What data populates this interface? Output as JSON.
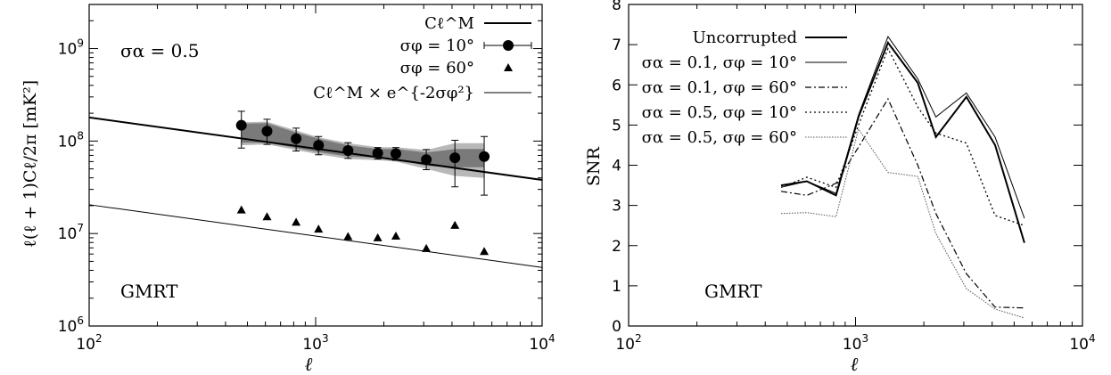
{
  "chart_data": [
    {
      "type": "scatter",
      "xlabel": "ℓ",
      "ylabel": "ℓ(ℓ + 1)Cℓ/2π [mK²]",
      "xscale": "log",
      "yscale": "log",
      "xlim": [
        100,
        10000
      ],
      "ylim": [
        1000000,
        3000000000
      ],
      "x_ticks": [
        {
          "base": "10",
          "exp": "2"
        },
        {
          "base": "10",
          "exp": "3"
        },
        {
          "base": "10",
          "exp": "4"
        }
      ],
      "y_ticks": [
        {
          "base": "10",
          "exp": "6"
        },
        {
          "base": "10",
          "exp": "7"
        },
        {
          "base": "10",
          "exp": "8"
        },
        {
          "base": "10",
          "exp": "9"
        }
      ],
      "annotations": [
        "σα = 0.5",
        "GMRT"
      ],
      "legend_position": "top-right",
      "series": [
        {
          "name": "Cℓ^M",
          "style": "thick-line",
          "x": [
            100,
            10000
          ],
          "y": [
            180000000,
            38000000
          ]
        },
        {
          "name": "σφ = 10°",
          "style": "points-errorbars",
          "x": [
            470,
            610,
            820,
            1030,
            1390,
            1880,
            2260,
            3080,
            4120,
            5550
          ],
          "y": [
            148000000,
            128000000,
            106000000,
            90000000,
            79000000,
            74000000,
            73000000,
            63000000,
            66000000,
            68000000
          ],
          "err_lo": [
            84000000,
            92000000,
            78000000,
            71000000,
            65000000,
            64000000,
            62000000,
            49000000,
            32000000,
            26000000
          ],
          "err_hi": [
            210000000,
            172000000,
            138000000,
            112000000,
            96000000,
            85000000,
            85000000,
            81000000,
            102000000,
            112000000
          ],
          "band_dark_lo": [
            96000000,
            96000000,
            84000000,
            76000000,
            68000000,
            66000000,
            64000000,
            54000000,
            52000000,
            52000000
          ],
          "band_dark_hi": [
            154000000,
            156000000,
            124000000,
            106000000,
            90000000,
            82000000,
            82000000,
            75000000,
            82000000,
            82000000
          ],
          "band_light_lo": [
            90000000,
            92000000,
            80000000,
            72000000,
            64000000,
            62000000,
            60000000,
            50000000,
            42000000,
            40000000
          ],
          "band_light_hi": [
            160000000,
            162000000,
            130000000,
            110000000,
            95000000,
            86000000,
            86000000,
            80000000,
            95000000,
            95000000
          ]
        },
        {
          "name": "σφ = 60°",
          "style": "triangles",
          "x": [
            470,
            610,
            820,
            1030,
            1390,
            1880,
            2260,
            3080,
            4120,
            5550
          ],
          "y": [
            18000000,
            15200000,
            13300000,
            11200000,
            9300000,
            9000000,
            9400000,
            6900000,
            12300000,
            6400000
          ]
        },
        {
          "name": "Cℓ^M × e^{-2σφ²}",
          "style": "thin-line",
          "x": [
            100,
            10000
          ],
          "y": [
            20500000,
            4300000
          ]
        }
      ]
    },
    {
      "type": "line",
      "xlabel": "ℓ",
      "ylabel": "SNR",
      "xscale": "log",
      "xlim": [
        100,
        10000
      ],
      "ylim": [
        0,
        8
      ],
      "x_ticks": [
        {
          "base": "10",
          "exp": "2"
        },
        {
          "base": "10",
          "exp": "3"
        },
        {
          "base": "10",
          "exp": "4"
        }
      ],
      "y_ticks": [
        "0",
        "1",
        "2",
        "3",
        "4",
        "5",
        "6",
        "7",
        "8"
      ],
      "annotations": [
        "GMRT"
      ],
      "legend_position": "top-right",
      "x": [
        470,
        610,
        820,
        1030,
        1390,
        1880,
        2260,
        3080,
        4120,
        5550
      ],
      "series": [
        {
          "name": "Uncorrupted",
          "style": "solid-thick",
          "values": [
            3.5,
            3.6,
            3.25,
            5.2,
            7.05,
            6.05,
            4.7,
            5.7,
            4.5,
            2.07
          ]
        },
        {
          "name": "σα = 0.1, σφ = 10°",
          "style": "solid-thin",
          "values": [
            3.45,
            3.6,
            3.3,
            5.25,
            7.2,
            6.15,
            5.2,
            5.8,
            4.7,
            2.68
          ]
        },
        {
          "name": "σα = 0.1, σφ = 60°",
          "style": "dash-dot",
          "values": [
            3.35,
            3.25,
            3.55,
            4.45,
            5.65,
            4.0,
            2.8,
            1.3,
            0.47,
            0.45
          ]
        },
        {
          "name": "σα = 0.5, σφ = 10°",
          "style": "dotted",
          "values": [
            3.45,
            3.7,
            3.45,
            5.0,
            6.9,
            5.45,
            4.8,
            4.55,
            2.75,
            2.5
          ]
        },
        {
          "name": "σα = 0.5, σφ = 60°",
          "style": "dotted-light",
          "values": [
            2.8,
            2.82,
            2.72,
            4.9,
            3.82,
            3.72,
            2.3,
            0.93,
            0.42,
            0.2
          ]
        }
      ]
    }
  ]
}
